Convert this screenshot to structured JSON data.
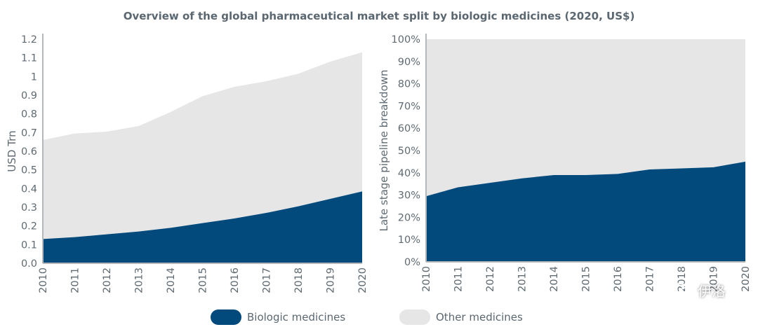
{
  "title": "Overview of the global pharmaceutical market split by biologic medicines (2020, US$)",
  "colors": {
    "biologic": "#024a7c",
    "other": "#e6e6e6",
    "axis": "#b5b8bb",
    "text": "#5f6a72"
  },
  "legend": {
    "biologic_label": "Biologic medicines",
    "other_label": "Other medicines"
  },
  "watermark": {
    "text": "伊洛",
    "icon": "wechat-icon"
  },
  "chart_data": [
    {
      "type": "area",
      "stacked": true,
      "ylabel": "USD Trn",
      "ylim": [
        0,
        1.2
      ],
      "yticks": [
        0.0,
        0.1,
        0.2,
        0.3,
        0.4,
        0.5,
        0.6,
        0.7,
        0.8,
        0.9,
        1.0,
        1.1,
        1.2
      ],
      "ytick_labels": [
        "0.0",
        "0.1",
        "0.2",
        "0.3",
        "0.4",
        "0.5",
        "0.6",
        "0.7",
        "0.8",
        "0.9",
        "1",
        "1.1",
        "1.2"
      ],
      "categories": [
        "2010",
        "2011",
        "2012",
        "2013",
        "2014",
        "2015",
        "2016",
        "2017",
        "2018",
        "2019",
        "2020"
      ],
      "series": [
        {
          "name": "Biologic medicines",
          "values": [
            0.13,
            0.14,
            0.155,
            0.17,
            0.19,
            0.215,
            0.24,
            0.27,
            0.305,
            0.345,
            0.385
          ]
        },
        {
          "name": "Other medicines",
          "values": [
            0.53,
            0.555,
            0.55,
            0.565,
            0.62,
            0.68,
            0.705,
            0.705,
            0.71,
            0.735,
            0.745
          ]
        }
      ]
    },
    {
      "type": "area",
      "stacked": true,
      "ylabel": "Late stage pipeline breakdown",
      "ylim": [
        0,
        100
      ],
      "yticks": [
        0,
        10,
        20,
        30,
        40,
        50,
        60,
        70,
        80,
        90,
        100
      ],
      "ytick_labels": [
        "0%",
        "10%",
        "20%",
        "30%",
        "40%",
        "50%",
        "60%",
        "70%",
        "80%",
        "90%",
        "100%"
      ],
      "categories": [
        "2010",
        "2011",
        "2012",
        "2013",
        "2014",
        "2015",
        "2016",
        "2017",
        "2018",
        "2019",
        "2020"
      ],
      "series": [
        {
          "name": "Biologic medicines",
          "values": [
            29.5,
            33.5,
            35.5,
            37.5,
            39,
            39,
            39.5,
            41.5,
            42,
            42.5,
            45
          ]
        },
        {
          "name": "Other medicines",
          "values": [
            70.5,
            66.5,
            64.5,
            62.5,
            61,
            61,
            60.5,
            58.5,
            58,
            57.5,
            55
          ]
        }
      ]
    }
  ]
}
